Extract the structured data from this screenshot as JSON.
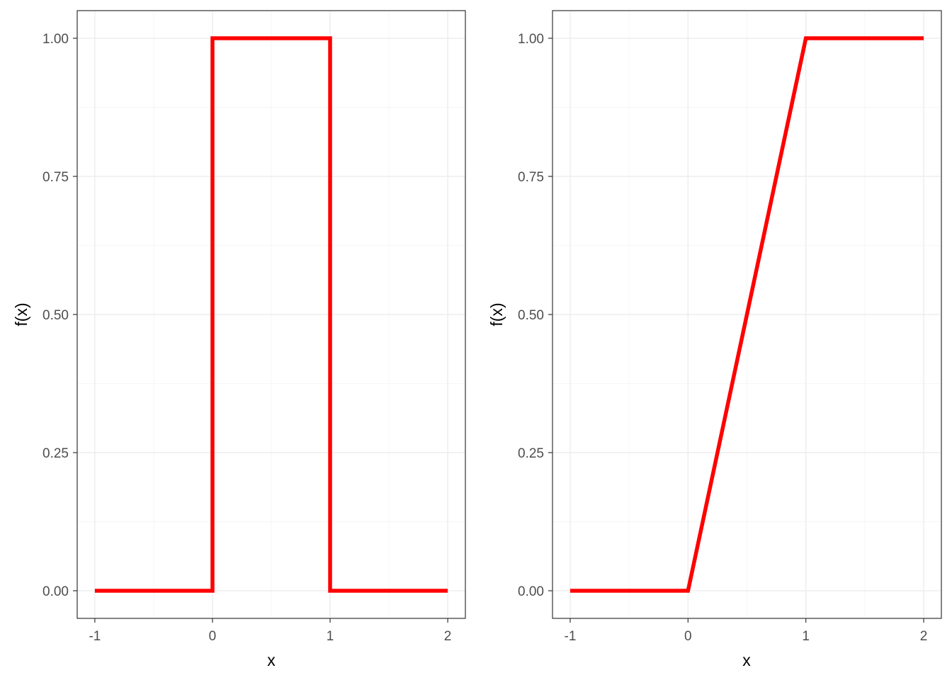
{
  "chart_data": [
    {
      "type": "line",
      "title": "",
      "xlabel": "x",
      "ylabel": "f(x)",
      "xlim": [
        -1.15,
        2.15
      ],
      "ylim": [
        -0.05,
        1.05
      ],
      "x_ticks": [
        -1,
        0,
        1,
        2
      ],
      "x_tick_labels": [
        "-1",
        "0",
        "1",
        "2"
      ],
      "y_ticks": [
        0,
        0.25,
        0.5,
        0.75,
        1
      ],
      "y_tick_labels": [
        "0.00",
        "0.25",
        "0.50",
        "0.75",
        "1.00"
      ],
      "grid": true,
      "legend": "none",
      "series": [
        {
          "color": "#ff0000",
          "points": [
            [
              -1,
              0
            ],
            [
              0,
              0
            ],
            [
              0,
              1
            ],
            [
              1,
              1
            ],
            [
              1,
              0
            ],
            [
              2,
              0
            ]
          ]
        }
      ]
    },
    {
      "type": "line",
      "title": "",
      "xlabel": "x",
      "ylabel": "f(x)",
      "xlim": [
        -1.15,
        2.15
      ],
      "ylim": [
        -0.05,
        1.05
      ],
      "x_ticks": [
        -1,
        0,
        1,
        2
      ],
      "x_tick_labels": [
        "-1",
        "0",
        "1",
        "2"
      ],
      "y_ticks": [
        0,
        0.25,
        0.5,
        0.75,
        1
      ],
      "y_tick_labels": [
        "0.00",
        "0.25",
        "0.50",
        "0.75",
        "1.00"
      ],
      "grid": true,
      "legend": "none",
      "series": [
        {
          "color": "#ff0000",
          "points": [
            [
              -1,
              0
            ],
            [
              0,
              0
            ],
            [
              1,
              1
            ],
            [
              2,
              1
            ]
          ]
        }
      ]
    }
  ]
}
